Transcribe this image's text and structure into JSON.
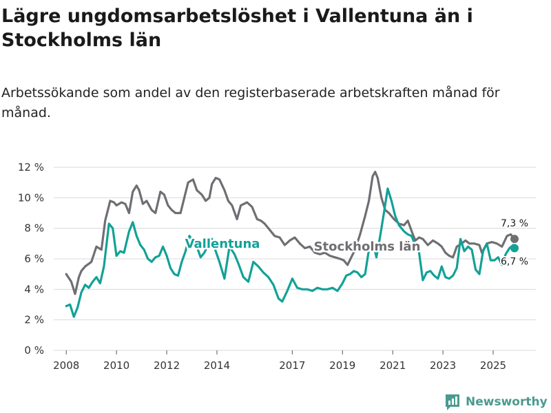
{
  "title": "Lägre ungdomsarbetslöshet i Vallentuna än i Stockholms län",
  "subtitle": "Arbetssökande som andel av den registerbaserade arbetskraften månad för månad.",
  "brand": {
    "name": "Newsworthy",
    "icon": "bar-chart-icon"
  },
  "colors": {
    "vallentuna": "#12a197",
    "stockholm": "#6e6e73",
    "grid": "#d9d9d9"
  },
  "chart_data": {
    "type": "line",
    "title": "Lägre ungdomsarbetslöshet i Vallentuna än i Stockholms län",
    "ylabel": "",
    "xlabel": "",
    "ylim": [
      0,
      12
    ],
    "xlim": [
      2007.5,
      2026.7
    ],
    "y_ticks": [
      0,
      2,
      4,
      6,
      8,
      10,
      12
    ],
    "y_tick_labels": [
      "0 %",
      "2 %",
      "4 %",
      "6 %",
      "8 %",
      "10 %",
      "12 %"
    ],
    "x_ticks": [
      2008,
      2010,
      2012,
      2014,
      2017,
      2019,
      2021,
      2023,
      2025
    ],
    "x_tick_labels": [
      "2008",
      "2010",
      "2012",
      "2014",
      "2017",
      "2019",
      "2021",
      "2023",
      "2025"
    ],
    "grid": true,
    "series": [
      {
        "name": "Stockholms län",
        "color": "#6e6e73",
        "x": [
          2008.0,
          2008.2,
          2008.35,
          2008.5,
          2008.6,
          2008.75,
          2009.0,
          2009.2,
          2009.4,
          2009.55,
          2009.75,
          2009.9,
          2010.0,
          2010.2,
          2010.35,
          2010.5,
          2010.65,
          2010.8,
          2010.9,
          2011.05,
          2011.2,
          2011.4,
          2011.55,
          2011.75,
          2011.9,
          2012.05,
          2012.2,
          2012.35,
          2012.55,
          2012.7,
          2012.85,
          2013.05,
          2013.2,
          2013.4,
          2013.55,
          2013.7,
          2013.8,
          2013.95,
          2014.1,
          2014.3,
          2014.45,
          2014.6,
          2014.8,
          2014.95,
          2015.2,
          2015.4,
          2015.6,
          2015.75,
          2015.9,
          2016.1,
          2016.3,
          2016.5,
          2016.7,
          2016.9,
          2017.1,
          2017.3,
          2017.5,
          2017.7,
          2017.9,
          2018.1,
          2018.3,
          2018.5,
          2018.7,
          2018.9,
          2019.05,
          2019.2,
          2019.35,
          2019.5,
          2019.7,
          2019.9,
          2020.05,
          2020.2,
          2020.3,
          2020.4,
          2020.55,
          2020.7,
          2020.85,
          2021.05,
          2021.25,
          2021.45,
          2021.6,
          2021.8,
          2021.9,
          2022.05,
          2022.2,
          2022.4,
          2022.6,
          2022.8,
          2022.95,
          2023.1,
          2023.25,
          2023.4,
          2023.55,
          2023.75,
          2023.9,
          2024.05,
          2024.25,
          2024.45,
          2024.55,
          2024.75,
          2024.95,
          2025.15,
          2025.35,
          2025.55,
          2025.7,
          2025.85
        ],
        "values": [
          5.0,
          4.5,
          3.7,
          4.8,
          5.2,
          5.5,
          5.8,
          6.8,
          6.6,
          8.5,
          9.8,
          9.7,
          9.5,
          9.7,
          9.6,
          9.0,
          10.4,
          10.8,
          10.5,
          9.6,
          9.8,
          9.2,
          9.0,
          10.4,
          10.2,
          9.5,
          9.2,
          9.0,
          9.0,
          10.0,
          11.0,
          11.2,
          10.5,
          10.2,
          9.8,
          10.0,
          10.9,
          11.3,
          11.2,
          10.5,
          9.8,
          9.5,
          8.6,
          9.5,
          9.7,
          9.4,
          8.6,
          8.5,
          8.3,
          7.9,
          7.5,
          7.4,
          6.9,
          7.2,
          7.4,
          7.0,
          6.7,
          6.8,
          6.4,
          6.3,
          6.4,
          6.2,
          6.1,
          6.0,
          5.9,
          5.6,
          6.1,
          6.6,
          7.6,
          8.8,
          9.8,
          11.4,
          11.7,
          11.3,
          10.0,
          9.2,
          9.0,
          8.6,
          8.3,
          8.2,
          8.5,
          7.6,
          7.2,
          7.4,
          7.3,
          6.9,
          7.2,
          7.0,
          6.8,
          6.4,
          6.2,
          6.1,
          6.8,
          7.0,
          7.2,
          7.0,
          7.0,
          6.9,
          6.4,
          7.0,
          7.1,
          7.0,
          6.8,
          7.5,
          7.6,
          7.3
        ]
      },
      {
        "name": "Vallentuna",
        "color": "#12a197",
        "x": [
          2008.0,
          2008.15,
          2008.3,
          2008.45,
          2008.6,
          2008.75,
          2008.9,
          2009.05,
          2009.2,
          2009.35,
          2009.5,
          2009.7,
          2009.85,
          2010.0,
          2010.15,
          2010.3,
          2010.5,
          2010.65,
          2010.8,
          2010.95,
          2011.1,
          2011.25,
          2011.4,
          2011.55,
          2011.7,
          2011.85,
          2012.0,
          2012.15,
          2012.3,
          2012.45,
          2012.6,
          2012.75,
          2012.9,
          2013.05,
          2013.2,
          2013.35,
          2013.5,
          2013.65,
          2013.8,
          2013.95,
          2014.1,
          2014.3,
          2014.5,
          2014.7,
          2014.85,
          2015.05,
          2015.25,
          2015.45,
          2015.65,
          2015.85,
          2016.05,
          2016.25,
          2016.45,
          2016.6,
          2016.8,
          2017.0,
          2017.2,
          2017.4,
          2017.6,
          2017.8,
          2018.0,
          2018.2,
          2018.4,
          2018.6,
          2018.8,
          2019.0,
          2019.15,
          2019.3,
          2019.45,
          2019.6,
          2019.75,
          2019.9,
          2020.05,
          2020.2,
          2020.35,
          2020.5,
          2020.65,
          2020.8,
          2020.95,
          2021.1,
          2021.25,
          2021.45,
          2021.6,
          2021.75,
          2021.9,
          2022.05,
          2022.2,
          2022.35,
          2022.5,
          2022.65,
          2022.8,
          2022.95,
          2023.1,
          2023.25,
          2023.4,
          2023.55,
          2023.7,
          2023.85,
          2024.0,
          2024.15,
          2024.3,
          2024.45,
          2024.6,
          2024.75,
          2024.9,
          2025.05,
          2025.2,
          2025.35,
          2025.5,
          2025.65,
          2025.8,
          2025.85
        ],
        "values": [
          2.9,
          3.0,
          2.2,
          2.8,
          3.8,
          4.3,
          4.1,
          4.5,
          4.8,
          4.4,
          5.5,
          8.3,
          8.0,
          6.2,
          6.5,
          6.4,
          7.8,
          8.4,
          7.5,
          6.9,
          6.6,
          6.0,
          5.8,
          6.1,
          6.2,
          6.8,
          6.2,
          5.4,
          5.0,
          4.9,
          5.8,
          6.5,
          7.5,
          7.2,
          6.8,
          6.1,
          6.4,
          6.9,
          7.3,
          6.5,
          5.8,
          4.7,
          6.8,
          6.3,
          5.7,
          4.8,
          4.5,
          5.8,
          5.5,
          5.1,
          4.8,
          4.3,
          3.4,
          3.2,
          3.9,
          4.7,
          4.1,
          4.0,
          4.0,
          3.9,
          4.1,
          4.0,
          4.0,
          4.1,
          3.9,
          4.4,
          4.9,
          5.0,
          5.2,
          5.1,
          4.8,
          5.0,
          6.6,
          7.2,
          6.1,
          7.5,
          9.0,
          10.6,
          9.8,
          8.8,
          8.2,
          7.8,
          7.6,
          7.5,
          6.9,
          6.4,
          4.6,
          5.1,
          5.2,
          4.9,
          4.7,
          5.5,
          4.8,
          4.7,
          4.9,
          5.4,
          7.3,
          6.5,
          6.8,
          6.6,
          5.3,
          5.0,
          6.5,
          7.0,
          5.9,
          5.9,
          6.1,
          5.6,
          6.3,
          6.7,
          6.9,
          6.7
        ]
      }
    ],
    "annotations": [
      {
        "text": "Vallentuna",
        "series": "Vallentuna"
      },
      {
        "text": "Stockholms län",
        "series": "Stockholms län"
      }
    ],
    "end_labels": [
      {
        "series": "Stockholms län",
        "text": "7,3 %",
        "value": 7.3
      },
      {
        "series": "Vallentuna",
        "text": "6,7 %",
        "value": 6.7
      }
    ]
  }
}
